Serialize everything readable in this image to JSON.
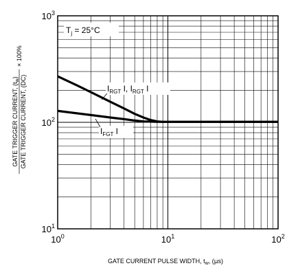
{
  "chart_data": {
    "type": "line",
    "x_scale": "log",
    "y_scale": "log",
    "xlim": [
      1,
      100
    ],
    "ylim": [
      10,
      1000
    ],
    "grid": true,
    "xlabel": {
      "main": "GATE CURRENT PULSE WIDTH, t",
      "sub": "w",
      "tail": ", (",
      "mu": "µ",
      "unit": "s)"
    },
    "ylabel": {
      "numerator": "GATE TRIGGER CURRENT, (t",
      "numerator_sub": "w",
      "numerator_tail": ")",
      "denominator": "GATE TRIGGER CURRENT, (DC)",
      "factor": "× 100%"
    },
    "x_ticks": [
      {
        "value": 1,
        "base": "10",
        "exp": "0"
      },
      {
        "value": 10,
        "base": "10",
        "exp": "1"
      },
      {
        "value": 100,
        "base": "10",
        "exp": "2"
      }
    ],
    "y_ticks": [
      {
        "value": 10,
        "base": "10",
        "exp": "1"
      },
      {
        "value": 100,
        "base": "10",
        "exp": "2"
      },
      {
        "value": 1000,
        "base": "10",
        "exp": "3"
      }
    ],
    "annotation": {
      "condition": {
        "main": "T",
        "sub": "j",
        "tail": " = 25°C"
      },
      "series_labels": [
        {
          "parts": [
            {
              "text": "I"
            },
            {
              "text": "RGT",
              "sub": true
            },
            {
              "text": " I"
            },
            {
              "text": ", I"
            },
            {
              "text": "RGT",
              "sub": true
            },
            {
              "text": " I"
            }
          ]
        },
        {
          "parts": [
            {
              "text": "I"
            },
            {
              "text": "FGT",
              "sub": true
            },
            {
              "text": " I"
            }
          ]
        }
      ]
    },
    "series": [
      {
        "x": [
          1,
          1.5,
          2,
          3,
          4,
          5,
          6,
          7,
          8,
          9,
          10,
          20,
          50,
          100
        ],
        "y": [
          270,
          222,
          192,
          156,
          135,
          120,
          111,
          105,
          102,
          101,
          101,
          101,
          101,
          101
        ]
      },
      {
        "x": [
          1,
          2,
          3,
          4,
          5,
          6,
          8,
          10,
          20,
          50,
          100
        ],
        "y": [
          128,
          117,
          111,
          107,
          104,
          102,
          101,
          101,
          101,
          101,
          101
        ]
      }
    ]
  }
}
